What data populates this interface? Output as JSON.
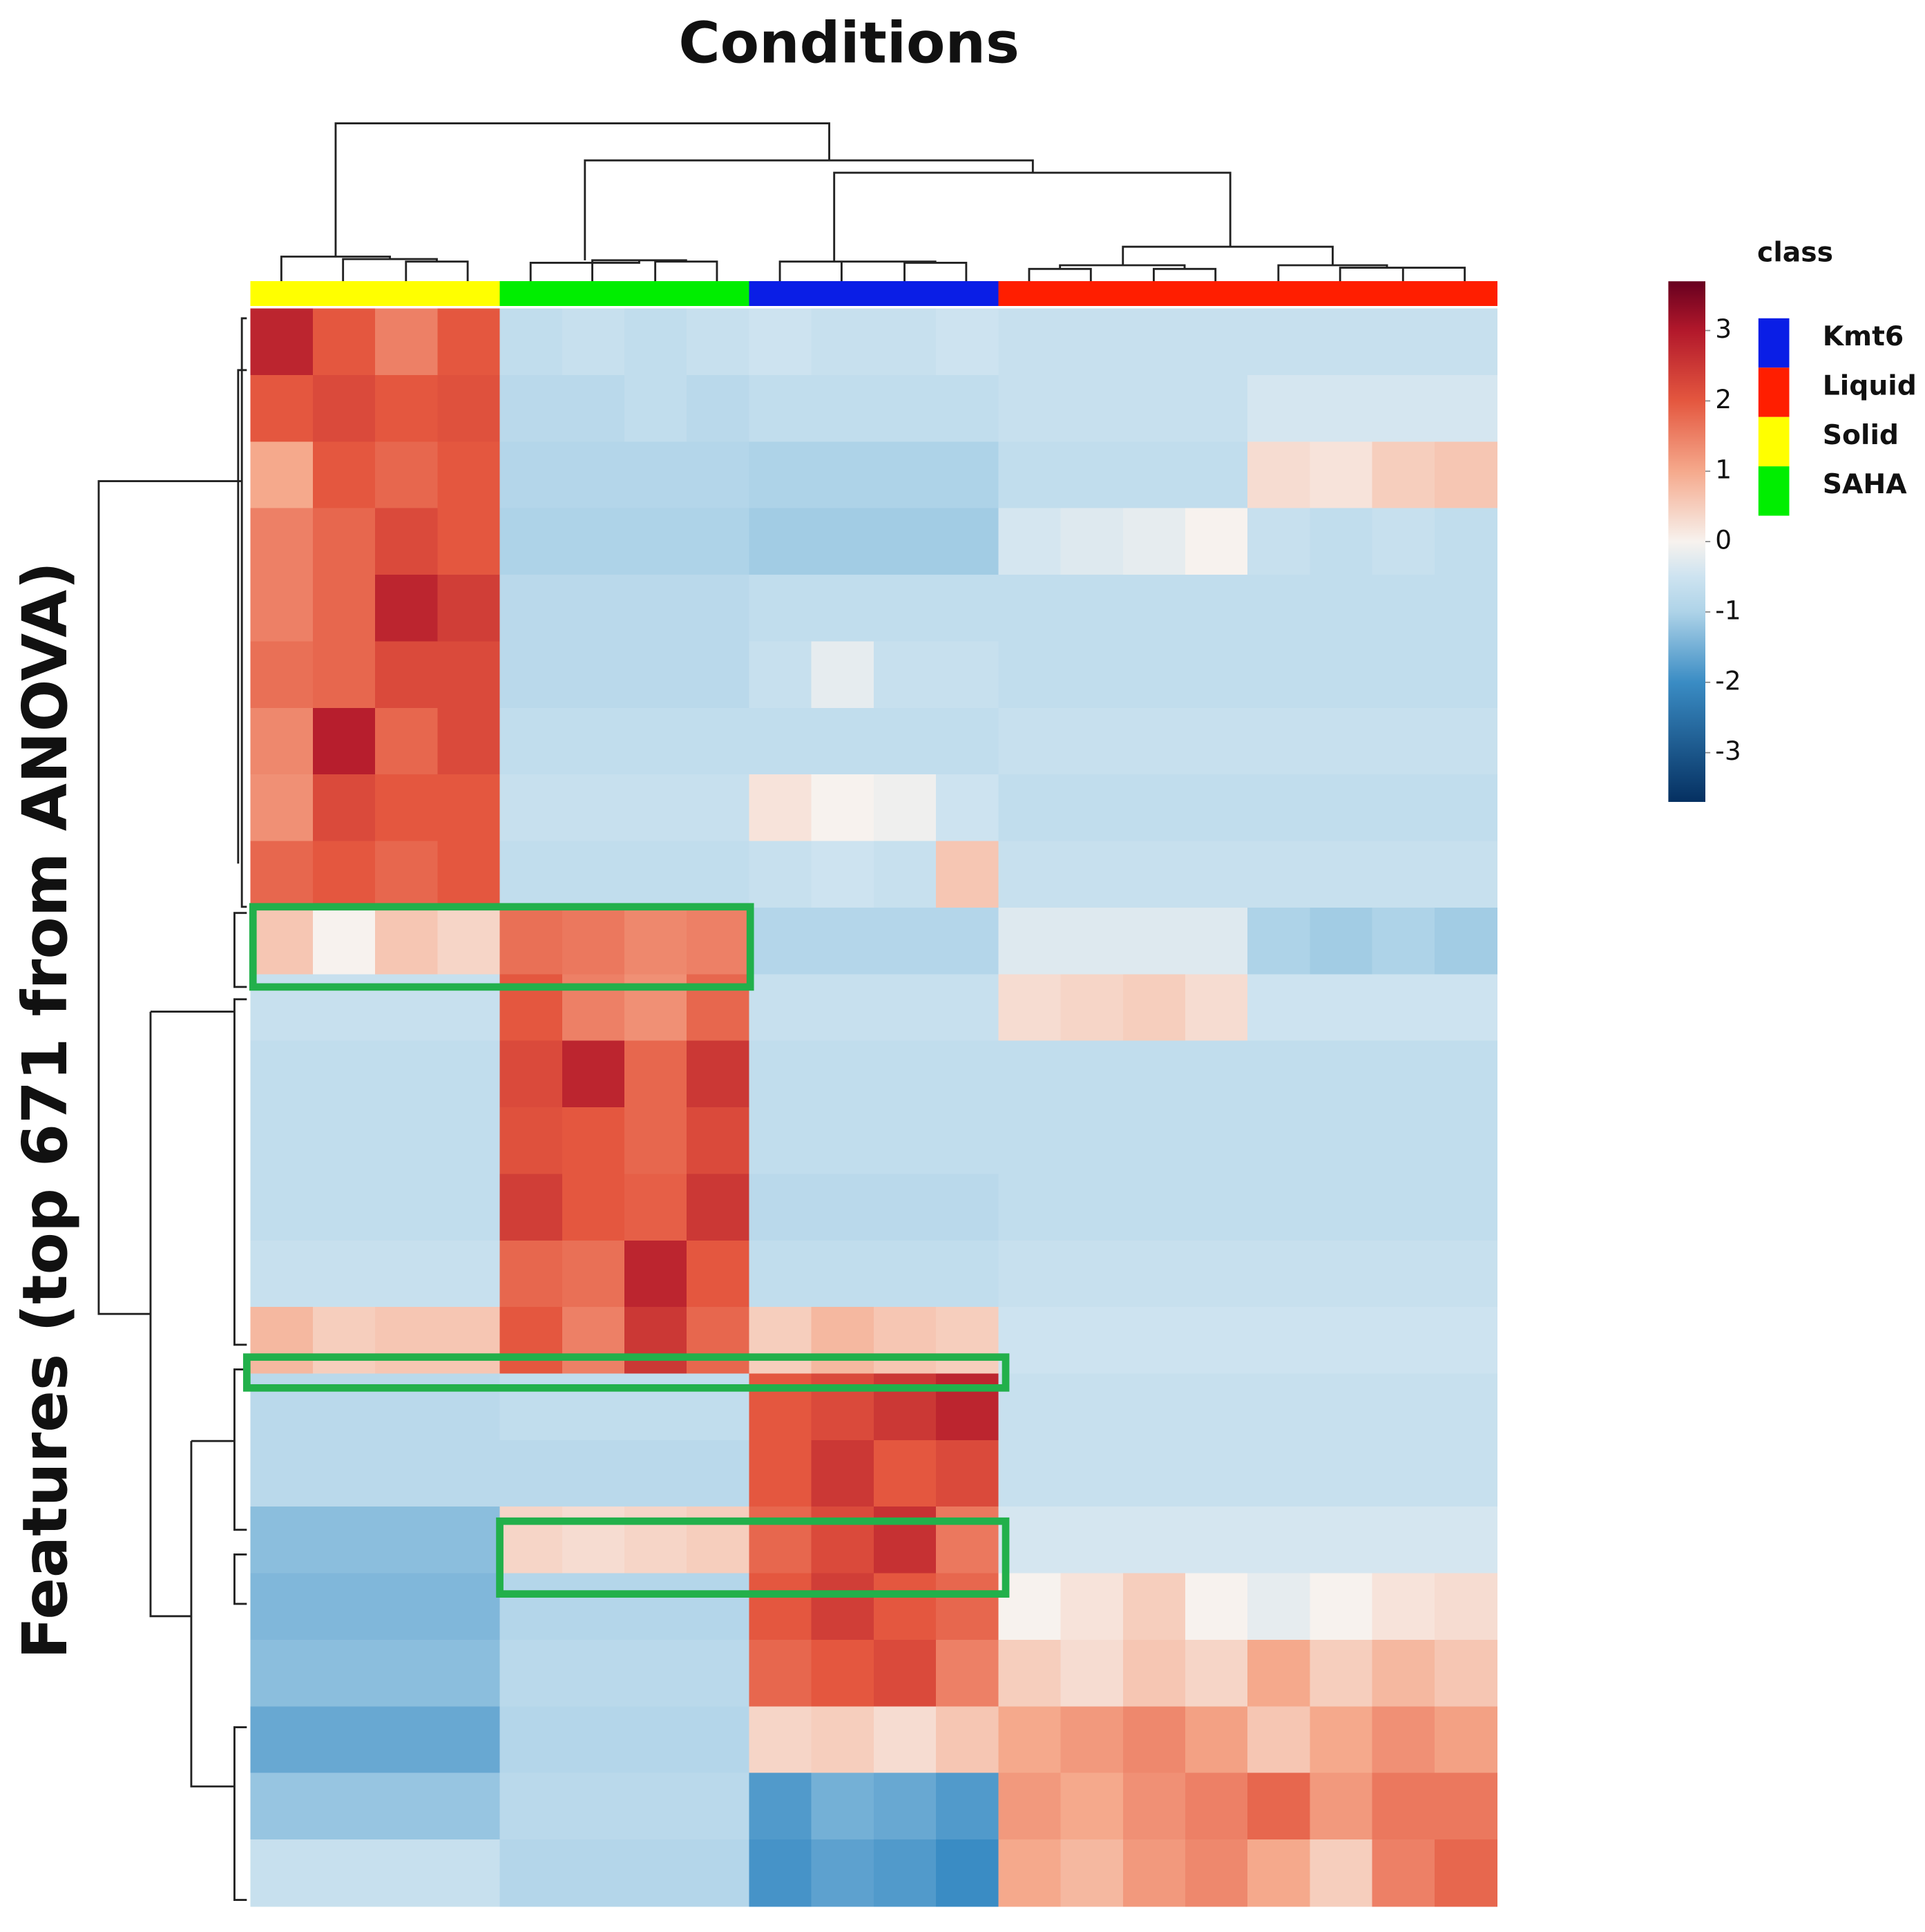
{
  "chart_data": {
    "type": "heatmap",
    "title": "Conditions",
    "ylabel": "Features (top 671 from ANOVA)",
    "legend": {
      "title": "class",
      "items": [
        {
          "name": "Kmt6",
          "color": "#0a1ee6"
        },
        {
          "name": "Liquid",
          "color": "#ff1e00"
        },
        {
          "name": "Solid",
          "color": "#ffff00"
        },
        {
          "name": "SAHA",
          "color": "#00ee00"
        }
      ]
    },
    "column_class": [
      2,
      2,
      2,
      2,
      3,
      3,
      3,
      3,
      0,
      0,
      0,
      0,
      1,
      1,
      1,
      1,
      1,
      1,
      1,
      1
    ],
    "zlim": [
      -3.7,
      3.7
    ],
    "zticks": [
      3,
      2,
      1,
      0,
      -1,
      -2,
      -3
    ],
    "colorscale": [
      [
        -3.7,
        "#053061"
      ],
      [
        -2,
        "#3a8cc4"
      ],
      [
        -1,
        "#aed3e8"
      ],
      [
        -0.5,
        "#cde3f0"
      ],
      [
        0,
        "#f7f2ee"
      ],
      [
        1,
        "#f5a98c"
      ],
      [
        2,
        "#e4573f"
      ],
      [
        3,
        "#b2182b"
      ],
      [
        3.7,
        "#67001f"
      ]
    ],
    "values": [
      [
        2.8,
        2,
        1.5,
        2,
        -0.7,
        -0.6,
        -0.7,
        -0.6,
        -0.5,
        -0.6,
        -0.6,
        -0.5,
        -0.6,
        -0.6,
        -0.6,
        -0.6,
        -0.6,
        -0.6,
        -0.6,
        -0.6
      ],
      [
        2,
        2.2,
        2,
        2.1,
        -0.8,
        -0.8,
        -0.7,
        -0.8,
        -0.7,
        -0.7,
        -0.7,
        -0.7,
        -0.6,
        -0.6,
        -0.6,
        -0.6,
        -0.4,
        -0.4,
        -0.4,
        -0.4
      ],
      [
        1,
        2,
        1.8,
        2,
        -0.9,
        -0.9,
        -0.9,
        -0.9,
        -1,
        -1,
        -1,
        -1,
        -0.7,
        -0.7,
        -0.7,
        -0.7,
        0.3,
        0.2,
        0.5,
        0.6
      ],
      [
        1.5,
        1.8,
        2.2,
        2,
        -1,
        -1,
        -1,
        -1,
        -1.1,
        -1.1,
        -1.1,
        -1.1,
        -0.4,
        -0.3,
        -0.2,
        0,
        -0.6,
        -0.7,
        -0.6,
        -0.7
      ],
      [
        1.5,
        1.8,
        2.8,
        2.4,
        -0.8,
        -0.8,
        -0.8,
        -0.8,
        -0.7,
        -0.7,
        -0.7,
        -0.7,
        -0.7,
        -0.7,
        -0.7,
        -0.7,
        -0.7,
        -0.7,
        -0.7,
        -0.7
      ],
      [
        1.7,
        1.8,
        2.2,
        2.2,
        -0.8,
        -0.8,
        -0.8,
        -0.8,
        -0.6,
        -0.2,
        -0.6,
        -0.6,
        -0.7,
        -0.7,
        -0.7,
        -0.7,
        -0.7,
        -0.7,
        -0.7,
        -0.7
      ],
      [
        1.4,
        2.9,
        1.8,
        2.2,
        -0.7,
        -0.7,
        -0.7,
        -0.7,
        -0.7,
        -0.7,
        -0.7,
        -0.7,
        -0.6,
        -0.6,
        -0.6,
        -0.6,
        -0.6,
        -0.6,
        -0.6,
        -0.6
      ],
      [
        1.3,
        2.2,
        2,
        2,
        -0.6,
        -0.6,
        -0.6,
        -0.6,
        0.2,
        0,
        -0.1,
        -0.5,
        -0.7,
        -0.7,
        -0.7,
        -0.7,
        -0.7,
        -0.7,
        -0.7,
        -0.7
      ],
      [
        1.8,
        2,
        1.8,
        2,
        -0.7,
        -0.7,
        -0.7,
        -0.7,
        -0.6,
        -0.5,
        -0.6,
        0.6,
        -0.6,
        -0.6,
        -0.6,
        -0.6,
        -0.6,
        -0.6,
        -0.6,
        -0.6
      ],
      [
        0.6,
        0,
        0.6,
        0.4,
        1.7,
        1.6,
        1.4,
        1.5,
        -0.9,
        -0.9,
        -0.9,
        -0.9,
        -0.3,
        -0.3,
        -0.3,
        -0.3,
        -1,
        -1.1,
        -1,
        -1.1
      ],
      [
        -0.6,
        -0.6,
        -0.6,
        -0.6,
        2,
        1.5,
        1.3,
        1.8,
        -0.6,
        -0.6,
        -0.6,
        -0.6,
        0.3,
        0.4,
        0.5,
        0.3,
        -0.5,
        -0.5,
        -0.5,
        -0.5
      ],
      [
        -0.7,
        -0.7,
        -0.7,
        -0.7,
        2.2,
        2.8,
        1.8,
        2.5,
        -0.7,
        -0.7,
        -0.7,
        -0.7,
        -0.7,
        -0.7,
        -0.7,
        -0.7,
        -0.7,
        -0.7,
        -0.7,
        -0.7
      ],
      [
        -0.7,
        -0.7,
        -0.7,
        -0.7,
        2.1,
        2,
        1.8,
        2.2,
        -0.7,
        -0.7,
        -0.7,
        -0.7,
        -0.7,
        -0.7,
        -0.7,
        -0.7,
        -0.7,
        -0.7,
        -0.7,
        -0.7
      ],
      [
        -0.7,
        -0.7,
        -0.7,
        -0.7,
        2.4,
        2,
        1.9,
        2.5,
        -0.8,
        -0.8,
        -0.8,
        -0.8,
        -0.7,
        -0.7,
        -0.7,
        -0.7,
        -0.7,
        -0.7,
        -0.7,
        -0.7
      ],
      [
        -0.6,
        -0.6,
        -0.6,
        -0.6,
        1.8,
        1.7,
        2.8,
        2,
        -0.7,
        -0.7,
        -0.7,
        -0.7,
        -0.6,
        -0.6,
        -0.6,
        -0.6,
        -0.6,
        -0.6,
        -0.6,
        -0.6
      ],
      [
        0.8,
        0.5,
        0.6,
        0.6,
        2,
        1.5,
        2.5,
        1.8,
        0.5,
        0.8,
        0.6,
        0.5,
        -0.5,
        -0.5,
        -0.5,
        -0.5,
        -0.5,
        -0.5,
        -0.5,
        -0.5
      ],
      [
        -0.8,
        -0.8,
        -0.8,
        -0.8,
        -0.7,
        -0.7,
        -0.7,
        -0.7,
        2,
        2.2,
        2.5,
        2.8,
        -0.6,
        -0.6,
        -0.6,
        -0.6,
        -0.6,
        -0.6,
        -0.6,
        -0.6
      ],
      [
        -0.8,
        -0.8,
        -0.8,
        -0.8,
        -0.8,
        -0.8,
        -0.8,
        -0.8,
        2,
        2.5,
        2,
        2.2,
        -0.6,
        -0.6,
        -0.6,
        -0.6,
        -0.6,
        -0.6,
        -0.6,
        -0.6
      ],
      [
        -1.3,
        -1.3,
        -1.3,
        -1.3,
        0.4,
        0.3,
        0.4,
        0.5,
        1.8,
        2.2,
        2.6,
        1.6,
        -0.4,
        -0.4,
        -0.4,
        -0.4,
        -0.4,
        -0.4,
        -0.4,
        -0.4
      ],
      [
        -1.4,
        -1.4,
        -1.4,
        -1.4,
        -0.9,
        -0.9,
        -0.9,
        -0.9,
        2,
        2.4,
        2,
        1.8,
        0,
        0.2,
        0.5,
        0,
        -0.2,
        0,
        0.2,
        0.3
      ],
      [
        -1.3,
        -1.3,
        -1.3,
        -1.3,
        -0.8,
        -0.8,
        -0.8,
        -0.8,
        1.8,
        2,
        2.2,
        1.5,
        0.5,
        0.3,
        0.6,
        0.4,
        1,
        0.5,
        0.8,
        0.6
      ],
      [
        -1.6,
        -1.6,
        -1.6,
        -1.6,
        -0.9,
        -0.9,
        -0.9,
        -0.9,
        0.4,
        0.5,
        0.3,
        0.6,
        1,
        1.2,
        1.4,
        1.1,
        0.6,
        1,
        1.3,
        1.1
      ],
      [
        -1.2,
        -1.2,
        -1.2,
        -1.2,
        -0.8,
        -0.8,
        -0.8,
        -0.8,
        -1.8,
        -1.5,
        -1.6,
        -1.8,
        1.2,
        1,
        1.3,
        1.5,
        1.8,
        1.2,
        1.6,
        1.6
      ],
      [
        -0.6,
        -0.6,
        -0.6,
        -0.6,
        -0.9,
        -0.9,
        -0.9,
        -0.9,
        -1.9,
        -1.7,
        -1.8,
        -2,
        1,
        0.8,
        1.2,
        1.4,
        1,
        0.5,
        1.5,
        1.8
      ]
    ]
  }
}
